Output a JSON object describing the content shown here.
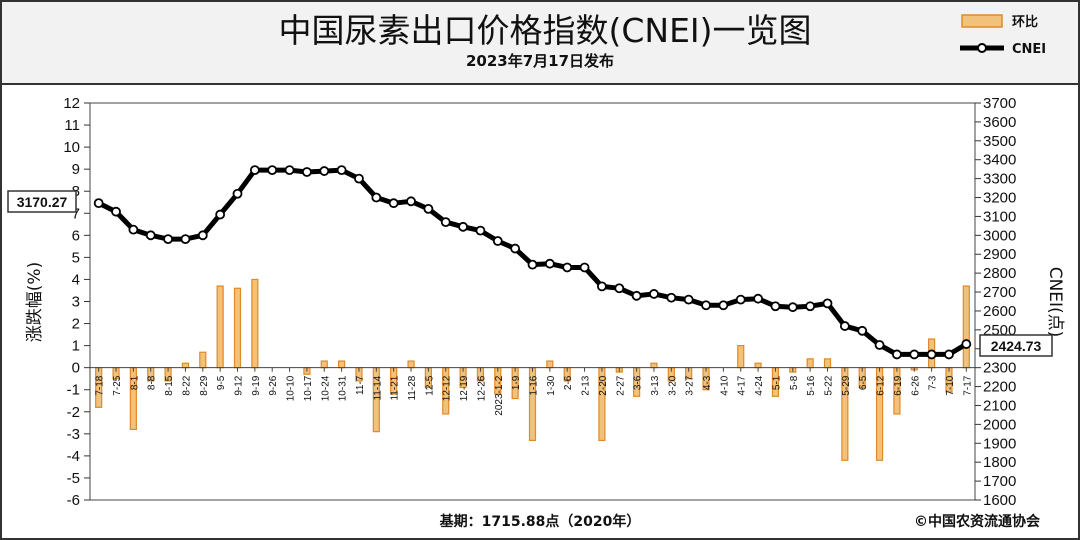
{
  "header": {
    "title": "中国尿素出口价格指数(CNEI)一览图",
    "subtitle": "2023年7月17日发布"
  },
  "legend": {
    "bar_label": "环比",
    "line_label": "CNEI"
  },
  "callouts": {
    "start": "3170.27",
    "end": "2424.73"
  },
  "footer": {
    "base": "基期：1715.88点（2020年）",
    "copyright": "©中国农资流通协会"
  },
  "colors": {
    "bar_fill": "#f2c27a",
    "bar_stroke": "#e08a2a",
    "line": "#000000",
    "marker_fill": "#ffffff",
    "header_bg": "#f2f2f2",
    "plot_bg": "#ffffff",
    "grid": "#e6e6e6"
  },
  "chart_data": {
    "type": "bar+line",
    "x": [
      "7-18",
      "7-25",
      "8-1",
      "8-8",
      "8-15",
      "8-22",
      "8-29",
      "9-5",
      "9-12",
      "9-19",
      "9-26",
      "10-10",
      "10-17",
      "10-24",
      "10-31",
      "11-7",
      "11-14",
      "11-21",
      "11-28",
      "12-5",
      "12-12",
      "12-19",
      "12-26",
      "2023-1-2",
      "1-9",
      "1-16",
      "1-30",
      "2-6",
      "2-13",
      "2-20",
      "2-27",
      "3-6",
      "3-13",
      "3-20",
      "3-27",
      "4-3",
      "4-10",
      "4-17",
      "4-24",
      "5-1",
      "5-8",
      "5-16",
      "5-22",
      "5-29",
      "6-5",
      "6-12",
      "6-19",
      "6-26",
      "7-3",
      "7-10",
      "7-17"
    ],
    "series": [
      {
        "name": "环比",
        "type": "bar",
        "axis": "left",
        "values": [
          -1.8,
          -0.5,
          -2.8,
          -0.6,
          -0.6,
          0.2,
          0.7,
          3.7,
          3.6,
          4.0,
          0,
          0,
          -0.3,
          0.3,
          0.3,
          -0.6,
          -2.9,
          -1.2,
          0.3,
          -0.9,
          -2.1,
          -0.9,
          -0.6,
          -1.2,
          -1.4,
          -3.3,
          0.3,
          -0.6,
          0,
          -3.3,
          -0.2,
          -1.3,
          0.2,
          -0.6,
          -0.5,
          -1.0,
          0,
          1.0,
          0.2,
          -1.3,
          -0.2,
          0.4,
          0.4,
          -4.2,
          -0.9,
          -4.2,
          -2.1,
          -0.1,
          1.3,
          -1.1,
          3.7
        ]
      },
      {
        "name": "CNEI",
        "type": "line",
        "axis": "right",
        "values": [
          3170.27,
          3125,
          3030,
          3000,
          2980,
          2980,
          3000,
          3110,
          3220,
          3345,
          3345,
          3345,
          3335,
          3340,
          3345,
          3300,
          3200,
          3170,
          3180,
          3140,
          3070,
          3045,
          3025,
          2970,
          2930,
          2845,
          2850,
          2830,
          2830,
          2730,
          2720,
          2680,
          2690,
          2670,
          2660,
          2630,
          2630,
          2660,
          2665,
          2625,
          2620,
          2625,
          2640,
          2520,
          2495,
          2420,
          2370,
          2370,
          2370,
          2370,
          2424.73
        ]
      }
    ],
    "y_left": {
      "label": "涨跌幅(%)",
      "min": -6,
      "max": 12,
      "step": 1
    },
    "y_right": {
      "label": "CNEI(点)",
      "min": 1600,
      "max": 3700,
      "step": 100
    },
    "legend_position": "top-right",
    "grid": false
  }
}
